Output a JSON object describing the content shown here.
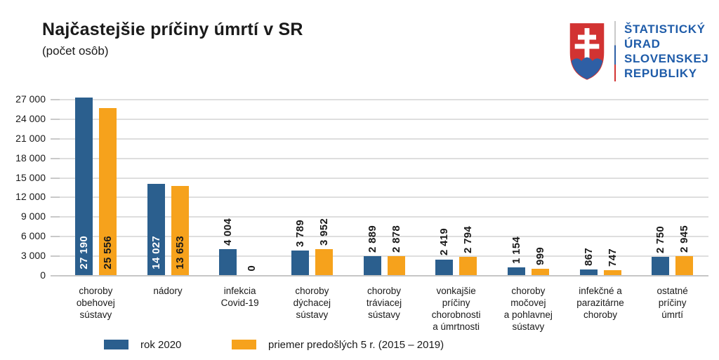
{
  "header": {
    "title": "Najčastejšie príčiny úmrtí v SR",
    "subtitle": "(počet osôb)",
    "logo": {
      "org_name_lines": [
        "ŠTATISTICKÝ",
        "ÚRAD",
        "SLOVENSKEJ",
        "REPUBLIKY"
      ],
      "text_color": "#1f5ca9",
      "arms_red": "#d23332",
      "arms_blue": "#2e5fa5"
    }
  },
  "chart_data": {
    "type": "bar",
    "title": "Najčastejšie príčiny úmrtí v SR",
    "subtitle": "(počet osôb)",
    "ylim": [
      0,
      27000
    ],
    "grid": true,
    "legend_position": "bottom",
    "value_label_rotation": -90,
    "y_tick_values": [
      0,
      3000,
      6000,
      9000,
      12000,
      15000,
      18000,
      21000,
      24000,
      27000
    ],
    "y_tick_labels": [
      "0",
      "3 000",
      "6 000",
      "9 000",
      "12 000",
      "15 000",
      "18 000",
      "21 000",
      "24 000",
      "27 000"
    ],
    "categories": [
      {
        "label": "choroby obehovej sústavy",
        "lines": [
          "choroby",
          "obehovej",
          "sústavy"
        ]
      },
      {
        "label": "nádory",
        "lines": [
          "nádory"
        ]
      },
      {
        "label": "infekcia Covid-19",
        "lines": [
          "infekcia",
          "Covid-19"
        ]
      },
      {
        "label": "choroby dýchacej sústavy",
        "lines": [
          "choroby",
          "dýchacej",
          "sústavy"
        ]
      },
      {
        "label": "choroby tráviacej sústavy",
        "lines": [
          "choroby",
          "tráviacej",
          "sústavy"
        ]
      },
      {
        "label": "vonkajšie príčiny chorobnosti a úmrtnosti",
        "lines": [
          "vonkajšie",
          "príčiny",
          "chorobnosti",
          "a úmrtnosti"
        ]
      },
      {
        "label": "choroby močovej a pohlavnej sústavy",
        "lines": [
          "choroby",
          "močovej",
          "a pohlavnej",
          "sústavy"
        ]
      },
      {
        "label": "infekčné a parazitárne choroby",
        "lines": [
          "infekčné a",
          "parazitárne",
          "choroby"
        ]
      },
      {
        "label": "ostatné príčiny úmrtí",
        "lines": [
          "ostatné",
          "príčiny",
          "úmrtí"
        ]
      }
    ],
    "series": [
      {
        "name": "rok 2020",
        "color": "#2b5f8e",
        "inside_label_color": "#ffffff",
        "values": [
          27190,
          14027,
          4004,
          3789,
          2889,
          2419,
          1154,
          867,
          2750
        ],
        "value_labels": [
          "27 190",
          "14 027",
          "4 004",
          "3 789",
          "2 889",
          "2 419",
          "1 154",
          "867",
          "2 750"
        ]
      },
      {
        "name": "priemer predošlých 5 r. (2015 – 2019)",
        "color": "#f6a21c",
        "inside_label_color": "#1a1a1a",
        "values": [
          25556,
          13653,
          0,
          3952,
          2878,
          2794,
          999,
          747,
          2945
        ],
        "value_labels": [
          "25 556",
          "13 653",
          "0",
          "3 952",
          "2 878",
          "2 794",
          "999",
          "747",
          "2 945"
        ]
      }
    ]
  }
}
